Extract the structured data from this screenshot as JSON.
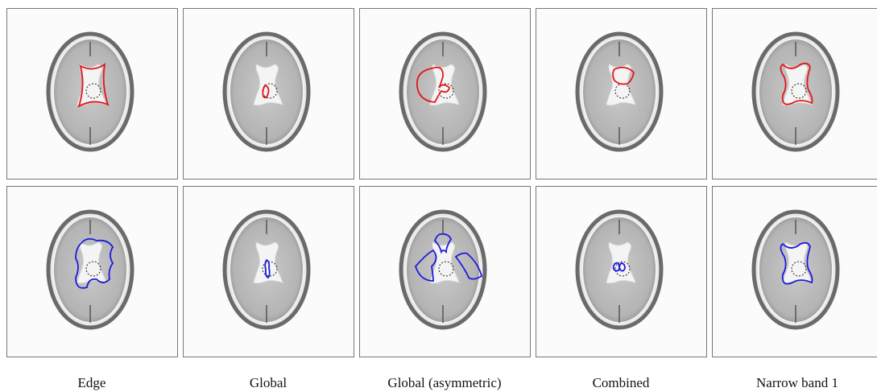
{
  "figure": {
    "captions": [
      "Edge",
      "Global",
      "Global (asymmetric)",
      "Combined",
      "Narrow band 1"
    ]
  }
}
